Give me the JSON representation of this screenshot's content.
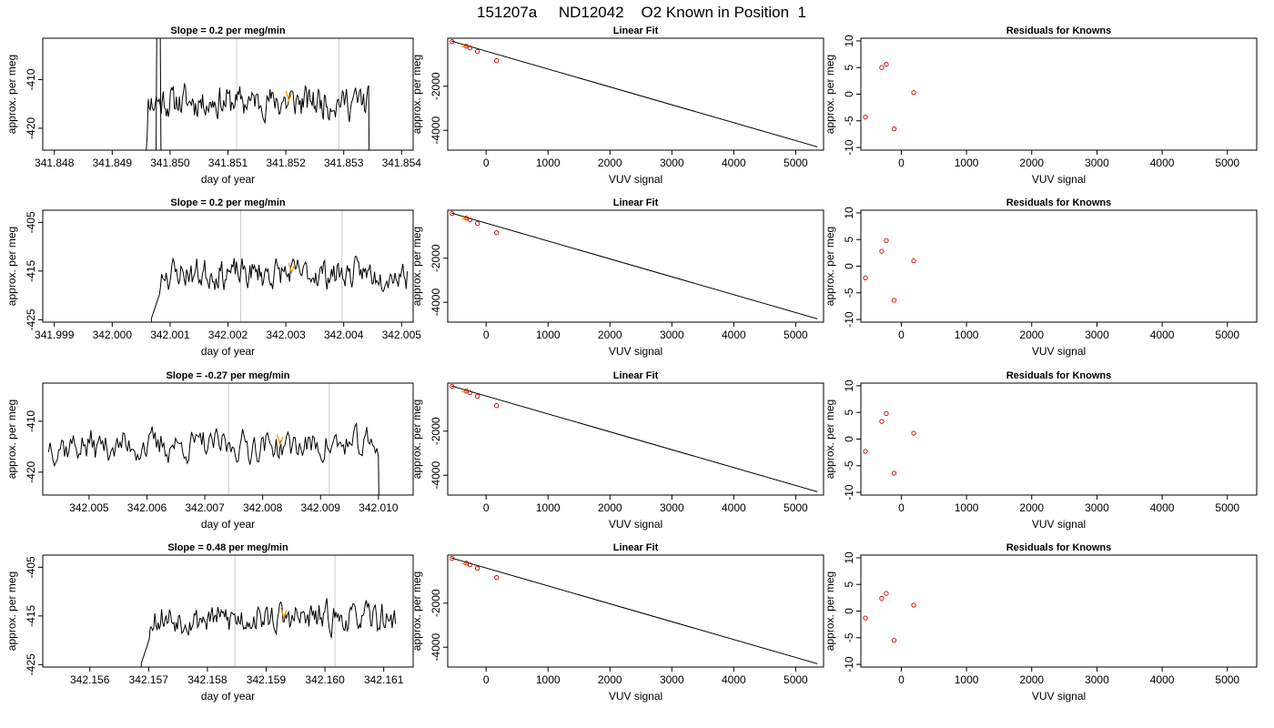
{
  "main_title": "151207a     ND12042    O2 Known in Position  1",
  "colors": {
    "trace": "#000000",
    "highlight": "#ff9900",
    "residual_point": "#cc0000",
    "marker_line": "#cccccc",
    "fit_line": "#000000"
  },
  "chart_data": [
    {
      "type": "line",
      "row": 0,
      "col": 0,
      "title": "Slope =  0.2  per meg/min",
      "xlabel": "day of year",
      "ylabel": "approx. per meg",
      "xlim": [
        341.8478,
        341.8542
      ],
      "ylim": [
        -424.5,
        -401.5
      ],
      "xticks": [
        "341.848",
        "341.849",
        "341.850",
        "341.851",
        "341.852",
        "341.853",
        "341.854"
      ],
      "xtick_values": [
        341.848,
        341.849,
        341.85,
        341.851,
        341.852,
        341.853,
        341.854
      ],
      "yticks": [
        "-410",
        "-420"
      ],
      "ytick_values": [
        -410,
        -420
      ],
      "markers": [
        341.85115,
        341.85292
      ],
      "highlight_x": [
        341.852,
        341.8521
      ],
      "seed": 11,
      "x_start": 341.8495,
      "x_end": 341.8535,
      "base": -414.5,
      "amp": 2.6,
      "features": "spike",
      "spike_x": [
        341.84975,
        341.84985
      ]
    },
    {
      "type": "line",
      "row": 1,
      "col": 0,
      "title": "Slope =  0.2  per meg/min",
      "xlabel": "day of year",
      "ylabel": "approx. per meg",
      "xlim": [
        341.9988,
        342.0052
      ],
      "ylim": [
        -425.5,
        -402.5
      ],
      "xticks": [
        "341.999",
        "342.000",
        "342.001",
        "342.002",
        "342.003",
        "342.004",
        "342.005"
      ],
      "xtick_values": [
        341.999,
        342.0,
        342.001,
        342.002,
        342.003,
        342.004,
        342.005
      ],
      "yticks": [
        "-405",
        "-415",
        "-425"
      ],
      "ytick_values": [
        -405,
        -415,
        -425
      ],
      "markers": [
        342.00222,
        342.00397
      ],
      "highlight_x": [
        342.00305,
        342.00315
      ],
      "seed": 23,
      "x_start": 342.0006,
      "x_end": 342.0051,
      "base": -415.5,
      "amp": 2.4,
      "features": "rise"
    },
    {
      "type": "line",
      "row": 2,
      "col": 0,
      "title": "Slope =  -0.27  per meg/min",
      "xlabel": "day of year",
      "ylabel": "approx. per meg",
      "xlim": [
        342.0042,
        342.0106
      ],
      "ylim": [
        -424.5,
        -402.5
      ],
      "xticks": [
        "342.005",
        "342.006",
        "342.007",
        "342.008",
        "342.009",
        "342.010"
      ],
      "xtick_values": [
        342.005,
        342.006,
        342.007,
        342.008,
        342.009,
        342.01
      ],
      "yticks": [
        "-410",
        "-420"
      ],
      "ytick_values": [
        -410,
        -420
      ],
      "markers": [
        342.00741,
        342.00915
      ],
      "highlight_x": [
        342.00825,
        342.00835
      ],
      "seed": 37,
      "x_start": 342.0043,
      "x_end": 342.0101,
      "base": -414.8,
      "amp": 2.5,
      "features": "drop"
    },
    {
      "type": "line",
      "row": 3,
      "col": 0,
      "title": "Slope =  0.48  per meg/min",
      "xlabel": "day of year",
      "ylabel": "approx. per meg",
      "xlim": [
        342.1552,
        342.1615
      ],
      "ylim": [
        -425.5,
        -402.5
      ],
      "xticks": [
        "342.156",
        "342.157",
        "342.158",
        "342.159",
        "342.160",
        "342.161"
      ],
      "xtick_values": [
        342.156,
        342.157,
        342.158,
        342.159,
        342.16,
        342.161
      ],
      "yticks": [
        "-405",
        "-415",
        "-425"
      ],
      "ytick_values": [
        -405,
        -415,
        -425
      ],
      "markers": [
        342.15847,
        342.16017
      ],
      "highlight_x": [
        342.15925,
        342.15935
      ],
      "seed": 53,
      "x_start": 342.1568,
      "x_end": 342.1612,
      "base": -415.5,
      "amp": 2.4,
      "features": "rise"
    },
    {
      "type": "scatter",
      "row": 0,
      "col": 1,
      "title": "Linear Fit",
      "xlabel": "VUV signal",
      "ylabel": "approx. per meg",
      "xlim": [
        -620,
        5450
      ],
      "ylim": [
        -4900,
        180
      ],
      "xticks": [
        "0",
        "1000",
        "2000",
        "3000",
        "4000",
        "5000"
      ],
      "xtick_values": [
        0,
        1000,
        2000,
        3000,
        4000,
        5000
      ],
      "yticks": [
        "-2000",
        "-4000"
      ],
      "ytick_values": [
        -2000,
        -4000
      ],
      "points": [
        [
          -550,
          30
        ],
        [
          -320,
          -180
        ],
        [
          -260,
          -260
        ],
        [
          -140,
          -420
        ],
        [
          170,
          -840
        ]
      ],
      "highlight": [
        -350,
        -210
      ],
      "fit": [
        [
          -560,
          50
        ],
        [
          5350,
          -4750
        ]
      ]
    },
    {
      "type": "scatter",
      "row": 1,
      "col": 1,
      "title": "Linear Fit",
      "xlabel": "VUV signal",
      "ylabel": "approx. per meg",
      "xlim": [
        -620,
        5450
      ],
      "ylim": [
        -4900,
        180
      ],
      "xticks": [
        "0",
        "1000",
        "2000",
        "3000",
        "4000",
        "5000"
      ],
      "xtick_values": [
        0,
        1000,
        2000,
        3000,
        4000,
        5000
      ],
      "yticks": [
        "-2000",
        "-4000"
      ],
      "ytick_values": [
        -2000,
        -4000
      ],
      "points": [
        [
          -550,
          30
        ],
        [
          -320,
          -180
        ],
        [
          -260,
          -260
        ],
        [
          -140,
          -420
        ],
        [
          170,
          -840
        ]
      ],
      "highlight": [
        -350,
        -210
      ],
      "fit": [
        [
          -560,
          50
        ],
        [
          5350,
          -4750
        ]
      ]
    },
    {
      "type": "scatter",
      "row": 2,
      "col": 1,
      "title": "Linear Fit",
      "xlabel": "VUV signal",
      "ylabel": "approx. per meg",
      "xlim": [
        -620,
        5450
      ],
      "ylim": [
        -4900,
        180
      ],
      "xticks": [
        "0",
        "1000",
        "2000",
        "3000",
        "4000",
        "5000"
      ],
      "xtick_values": [
        0,
        1000,
        2000,
        3000,
        4000,
        5000
      ],
      "yticks": [
        "-2000",
        "-4000"
      ],
      "ytick_values": [
        -2000,
        -4000
      ],
      "points": [
        [
          -550,
          30
        ],
        [
          -320,
          -180
        ],
        [
          -260,
          -260
        ],
        [
          -140,
          -420
        ],
        [
          170,
          -840
        ]
      ],
      "highlight": [
        -350,
        -210
      ],
      "fit": [
        [
          -560,
          50
        ],
        [
          5350,
          -4750
        ]
      ]
    },
    {
      "type": "scatter",
      "row": 3,
      "col": 1,
      "title": "Linear Fit",
      "xlabel": "VUV signal",
      "ylabel": "approx. per meg",
      "xlim": [
        -620,
        5450
      ],
      "ylim": [
        -4900,
        180
      ],
      "xticks": [
        "0",
        "1000",
        "2000",
        "3000",
        "4000",
        "5000"
      ],
      "xtick_values": [
        0,
        1000,
        2000,
        3000,
        4000,
        5000
      ],
      "yticks": [
        "-2000",
        "-4000"
      ],
      "ytick_values": [
        -2000,
        -4000
      ],
      "points": [
        [
          -550,
          30
        ],
        [
          -320,
          -180
        ],
        [
          -260,
          -260
        ],
        [
          -140,
          -420
        ],
        [
          170,
          -840
        ]
      ],
      "highlight": [
        -350,
        -210
      ],
      "fit": [
        [
          -560,
          50
        ],
        [
          5350,
          -4750
        ]
      ]
    },
    {
      "type": "scatter",
      "row": 0,
      "col": 2,
      "title": "Residuals for Knowns",
      "xlabel": "VUV signal",
      "ylabel": "approx. per meg",
      "xlim": [
        -620,
        5450
      ],
      "ylim": [
        -10.5,
        10.5
      ],
      "xticks": [
        "0",
        "1000",
        "2000",
        "3000",
        "4000",
        "5000"
      ],
      "xtick_values": [
        0,
        1000,
        2000,
        3000,
        4000,
        5000
      ],
      "yticks": [
        "10",
        "5",
        "0",
        "-5",
        "-10"
      ],
      "ytick_values": [
        10,
        5,
        0,
        -5,
        -10
      ],
      "points": [
        [
          -550,
          -4.3
        ],
        [
          -300,
          5.0
        ],
        [
          -230,
          5.6
        ],
        [
          -110,
          -6.5
        ],
        [
          190,
          0.3
        ]
      ]
    },
    {
      "type": "scatter",
      "row": 1,
      "col": 2,
      "title": "Residuals for Knowns",
      "xlabel": "VUV signal",
      "ylabel": "approx. per meg",
      "xlim": [
        -620,
        5450
      ],
      "ylim": [
        -10.5,
        10.5
      ],
      "xticks": [
        "0",
        "1000",
        "2000",
        "3000",
        "4000",
        "5000"
      ],
      "xtick_values": [
        0,
        1000,
        2000,
        3000,
        4000,
        5000
      ],
      "yticks": [
        "10",
        "5",
        "0",
        "-5",
        "-10"
      ],
      "ytick_values": [
        10,
        5,
        0,
        -5,
        -10
      ],
      "points": [
        [
          -550,
          -2.2
        ],
        [
          -300,
          2.8
        ],
        [
          -230,
          4.8
        ],
        [
          -110,
          -6.4
        ],
        [
          190,
          1.0
        ]
      ]
    },
    {
      "type": "scatter",
      "row": 2,
      "col": 2,
      "title": "Residuals for Knowns",
      "xlabel": "VUV signal",
      "ylabel": "approx. per meg",
      "xlim": [
        -620,
        5450
      ],
      "ylim": [
        -10.5,
        10.5
      ],
      "xticks": [
        "0",
        "1000",
        "2000",
        "3000",
        "4000",
        "5000"
      ],
      "xtick_values": [
        0,
        1000,
        2000,
        3000,
        4000,
        5000
      ],
      "yticks": [
        "10",
        "5",
        "0",
        "-5",
        "-10"
      ],
      "ytick_values": [
        10,
        5,
        0,
        -5,
        -10
      ],
      "points": [
        [
          -550,
          -2.3
        ],
        [
          -300,
          3.3
        ],
        [
          -230,
          4.8
        ],
        [
          -110,
          -6.4
        ],
        [
          190,
          1.1
        ]
      ]
    },
    {
      "type": "scatter",
      "row": 3,
      "col": 2,
      "title": "Residuals for Knowns",
      "xlabel": "VUV signal",
      "ylabel": "approx. per meg",
      "xlim": [
        -620,
        5450
      ],
      "ylim": [
        -10.5,
        10.5
      ],
      "xticks": [
        "0",
        "1000",
        "2000",
        "3000",
        "4000",
        "5000"
      ],
      "xtick_values": [
        0,
        1000,
        2000,
        3000,
        4000,
        5000
      ],
      "yticks": [
        "10",
        "5",
        "0",
        "-5",
        "-10"
      ],
      "ytick_values": [
        10,
        5,
        0,
        -5,
        -10
      ],
      "points": [
        [
          -550,
          -1.3
        ],
        [
          -300,
          2.4
        ],
        [
          -230,
          3.3
        ],
        [
          -110,
          -5.5
        ],
        [
          190,
          1.1
        ]
      ]
    }
  ]
}
